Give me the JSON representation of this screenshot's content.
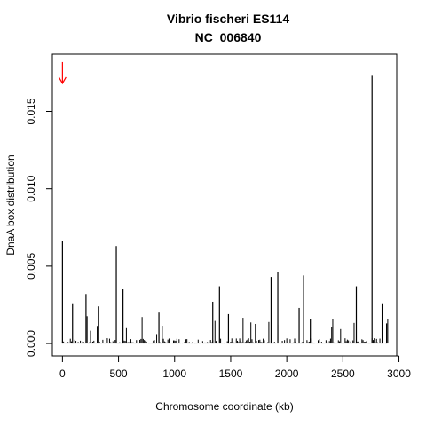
{
  "chart_data": {
    "type": "bar",
    "title": "Vibrio fischeri ES114",
    "subtitle": "NC_006840",
    "xlabel": "Chromosome coordinate (kb)",
    "ylabel": "DnaA box distribution",
    "xlim": [
      -90,
      2980
    ],
    "ylim": [
      -0.0008,
      0.0187
    ],
    "x_ticks": [
      0,
      500,
      1000,
      1500,
      2000,
      2500,
      3000
    ],
    "x_tick_labels": [
      "0",
      "500",
      "1000",
      "1500",
      "2000",
      "2500",
      "3000"
    ],
    "y_ticks": [
      0.0,
      0.005,
      0.01,
      0.015
    ],
    "y_tick_labels": [
      "0.000",
      "0.005",
      "0.010",
      "0.015"
    ],
    "bar_color": "#000000",
    "marker": {
      "x": 0,
      "y": 0.0175,
      "color": "#ff0000",
      "shape": "down-arrow"
    },
    "major_spikes": [
      {
        "x": 0,
        "y": 0.0066
      },
      {
        "x": 90,
        "y": 0.0026
      },
      {
        "x": 210,
        "y": 0.0032
      },
      {
        "x": 320,
        "y": 0.0024
      },
      {
        "x": 480,
        "y": 0.0063
      },
      {
        "x": 540,
        "y": 0.0035
      },
      {
        "x": 860,
        "y": 0.002
      },
      {
        "x": 1340,
        "y": 0.0027
      },
      {
        "x": 1400,
        "y": 0.0037
      },
      {
        "x": 1480,
        "y": 0.0019
      },
      {
        "x": 1860,
        "y": 0.0043
      },
      {
        "x": 1920,
        "y": 0.0046
      },
      {
        "x": 2150,
        "y": 0.0044
      },
      {
        "x": 2210,
        "y": 0.0016
      },
      {
        "x": 2110,
        "y": 0.0023
      },
      {
        "x": 2620,
        "y": 0.0037
      },
      {
        "x": 2760,
        "y": 0.0173
      },
      {
        "x": 2850,
        "y": 0.0026
      },
      {
        "x": 2890,
        "y": 0.0013
      }
    ],
    "baseline": {
      "x_start": 0,
      "x_end": 2900,
      "step": 10,
      "typical_max": 0.0004
    }
  }
}
